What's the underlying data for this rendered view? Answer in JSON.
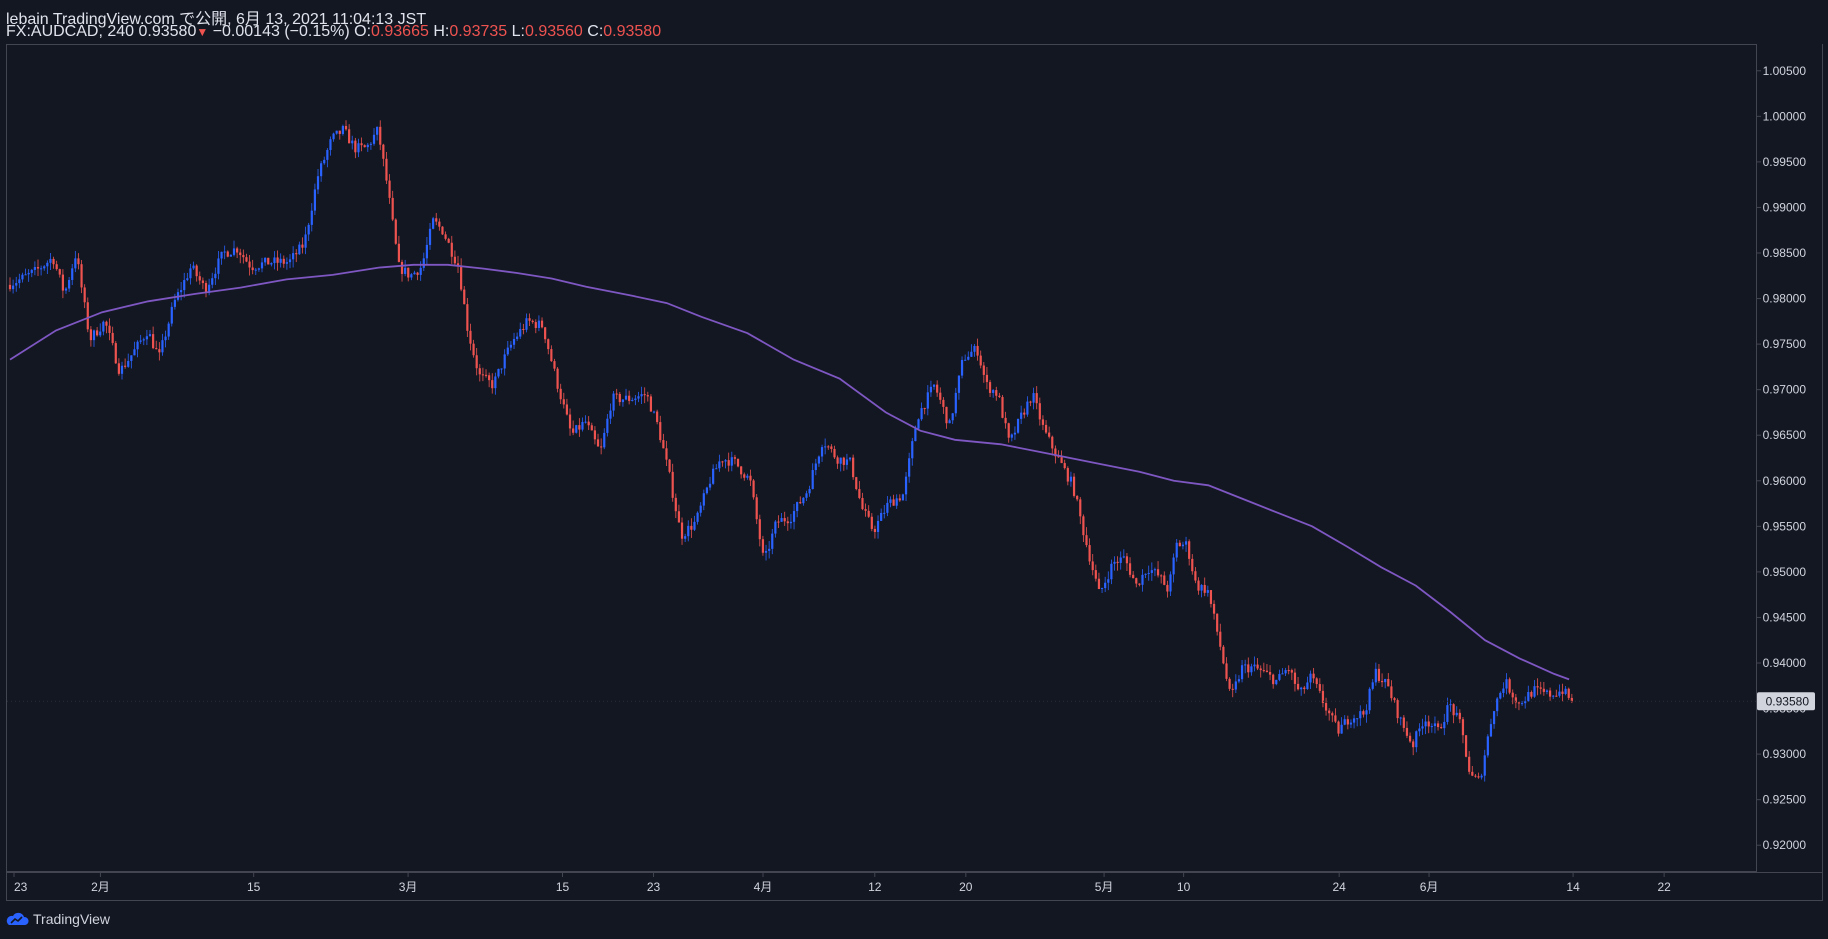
{
  "header": {
    "line1": "lebain TradingView.com で公開, 6月 13, 2021 11:04:13 JST",
    "symbol": "FX:AUDCAD, 240",
    "last": "0.93580",
    "change": "−0.00143 (−0.15%)",
    "o_label": "O:",
    "o_val": "0.93665",
    "h_label": "H:",
    "h_val": "0.93735",
    "l_label": "L:",
    "l_val": "0.93560",
    "c_label": "C:",
    "c_val": "0.93580"
  },
  "brand": {
    "name": "TradingView"
  },
  "colors": {
    "bg": "#131722",
    "up": "#2962ff",
    "down": "#ef5350",
    "ma": "#7e57c2",
    "grid": "#434651"
  },
  "chart_data": {
    "type": "line",
    "title": "FX:AUDCAD, 240",
    "series_type": "candlestick",
    "ylim": [
      0.9175,
      1.0075
    ],
    "price_ticks": [
      "1.00500",
      "1.00000",
      "0.99500",
      "0.99000",
      "0.98500",
      "0.98000",
      "0.97500",
      "0.97000",
      "0.96500",
      "0.96000",
      "0.95500",
      "0.95000",
      "0.94500",
      "0.94000",
      "0.93500",
      "0.93000",
      "0.92500",
      "0.92000"
    ],
    "price_tick_values": [
      1.005,
      1.0,
      0.995,
      0.99,
      0.985,
      0.98,
      0.975,
      0.97,
      0.965,
      0.96,
      0.955,
      0.95,
      0.945,
      0.94,
      0.935,
      0.93,
      0.925,
      0.92
    ],
    "last_price_label": "0.93580",
    "last_price": 0.9358,
    "x_range": [
      0,
      1510
    ],
    "time_ticks": [
      {
        "label": "23",
        "x": 0
      },
      {
        "label": "2月",
        "x": 75
      },
      {
        "label": "15",
        "x": 208
      },
      {
        "label": "3月",
        "x": 342
      },
      {
        "label": "15",
        "x": 476
      },
      {
        "label": "23",
        "x": 555
      },
      {
        "label": "4月",
        "x": 650
      },
      {
        "label": "12",
        "x": 747
      },
      {
        "label": "20",
        "x": 826
      },
      {
        "label": "5月",
        "x": 946
      },
      {
        "label": "10",
        "x": 1015
      },
      {
        "label": "24",
        "x": 1150
      },
      {
        "label": "6月",
        "x": 1228
      },
      {
        "label": "14",
        "x": 1353
      },
      {
        "label": "22",
        "x": 1432
      }
    ],
    "price_path": [
      [
        0,
        0.9815
      ],
      [
        10,
        0.982
      ],
      [
        25,
        0.983
      ],
      [
        40,
        0.9845
      ],
      [
        50,
        0.9805
      ],
      [
        60,
        0.985
      ],
      [
        72,
        0.9755
      ],
      [
        85,
        0.9775
      ],
      [
        98,
        0.972
      ],
      [
        112,
        0.9745
      ],
      [
        122,
        0.9765
      ],
      [
        132,
        0.9735
      ],
      [
        145,
        0.9795
      ],
      [
        160,
        0.9835
      ],
      [
        172,
        0.981
      ],
      [
        188,
        0.985
      ],
      [
        200,
        0.9855
      ],
      [
        212,
        0.9835
      ],
      [
        228,
        0.984
      ],
      [
        245,
        0.984
      ],
      [
        258,
        0.986
      ],
      [
        270,
        0.9935
      ],
      [
        282,
        0.9975
      ],
      [
        292,
        0.9985
      ],
      [
        302,
        0.9965
      ],
      [
        312,
        0.9965
      ],
      [
        322,
        0.9985
      ],
      [
        330,
        0.9925
      ],
      [
        340,
        0.9835
      ],
      [
        350,
        0.9825
      ],
      [
        360,
        0.9835
      ],
      [
        370,
        0.9885
      ],
      [
        378,
        0.9875
      ],
      [
        385,
        0.9855
      ],
      [
        392,
        0.9835
      ],
      [
        400,
        0.9765
      ],
      [
        410,
        0.9715
      ],
      [
        422,
        0.9705
      ],
      [
        432,
        0.9735
      ],
      [
        440,
        0.9755
      ],
      [
        452,
        0.9775
      ],
      [
        465,
        0.977
      ],
      [
        478,
        0.9705
      ],
      [
        490,
        0.965
      ],
      [
        502,
        0.9665
      ],
      [
        515,
        0.963
      ],
      [
        525,
        0.969
      ],
      [
        540,
        0.969
      ],
      [
        555,
        0.9695
      ],
      [
        565,
        0.966
      ],
      [
        575,
        0.9605
      ],
      [
        585,
        0.954
      ],
      [
        598,
        0.9555
      ],
      [
        610,
        0.96
      ],
      [
        620,
        0.9625
      ],
      [
        632,
        0.962
      ],
      [
        645,
        0.96
      ],
      [
        657,
        0.951
      ],
      [
        668,
        0.9555
      ],
      [
        680,
        0.956
      ],
      [
        695,
        0.959
      ],
      [
        708,
        0.9645
      ],
      [
        720,
        0.9625
      ],
      [
        732,
        0.962
      ],
      [
        742,
        0.957
      ],
      [
        752,
        0.9545
      ],
      [
        765,
        0.9575
      ],
      [
        778,
        0.9585
      ],
      [
        790,
        0.967
      ],
      [
        805,
        0.9705
      ],
      [
        818,
        0.966
      ],
      [
        830,
        0.9735
      ],
      [
        842,
        0.9745
      ],
      [
        850,
        0.9705
      ],
      [
        860,
        0.9695
      ],
      [
        870,
        0.964
      ],
      [
        880,
        0.967
      ],
      [
        890,
        0.9695
      ],
      [
        900,
        0.9655
      ],
      [
        912,
        0.9625
      ],
      [
        925,
        0.9595
      ],
      [
        935,
        0.954
      ],
      [
        948,
        0.9475
      ],
      [
        960,
        0.951
      ],
      [
        970,
        0.9515
      ],
      [
        980,
        0.9485
      ],
      [
        990,
        0.9505
      ],
      [
        1000,
        0.9495
      ],
      [
        1008,
        0.948
      ],
      [
        1015,
        0.953
      ],
      [
        1024,
        0.953
      ],
      [
        1032,
        0.9485
      ],
      [
        1042,
        0.948
      ],
      [
        1052,
        0.9425
      ],
      [
        1062,
        0.936
      ],
      [
        1072,
        0.9395
      ],
      [
        1082,
        0.9395
      ],
      [
        1090,
        0.939
      ],
      [
        1102,
        0.938
      ],
      [
        1112,
        0.9395
      ],
      [
        1122,
        0.9365
      ],
      [
        1132,
        0.9385
      ],
      [
        1145,
        0.935
      ],
      [
        1155,
        0.9325
      ],
      [
        1165,
        0.934
      ],
      [
        1178,
        0.9345
      ],
      [
        1188,
        0.939
      ],
      [
        1198,
        0.9375
      ],
      [
        1210,
        0.9335
      ],
      [
        1220,
        0.931
      ],
      [
        1230,
        0.934
      ],
      [
        1242,
        0.9325
      ],
      [
        1252,
        0.9355
      ],
      [
        1262,
        0.933
      ],
      [
        1270,
        0.9275
      ],
      [
        1278,
        0.927
      ],
      [
        1290,
        0.935
      ],
      [
        1300,
        0.938
      ],
      [
        1312,
        0.9355
      ],
      [
        1325,
        0.937
      ],
      [
        1338,
        0.9365
      ],
      [
        1350,
        0.937
      ],
      [
        1358,
        0.9358
      ]
    ],
    "ma_path": [
      [
        0,
        0.9733
      ],
      [
        40,
        0.9765
      ],
      [
        80,
        0.9785
      ],
      [
        120,
        0.9797
      ],
      [
        160,
        0.9805
      ],
      [
        200,
        0.9812
      ],
      [
        240,
        0.9821
      ],
      [
        280,
        0.9826
      ],
      [
        320,
        0.9834
      ],
      [
        350,
        0.9837
      ],
      [
        380,
        0.9837
      ],
      [
        410,
        0.9833
      ],
      [
        440,
        0.9828
      ],
      [
        470,
        0.9822
      ],
      [
        500,
        0.9813
      ],
      [
        540,
        0.9803
      ],
      [
        570,
        0.9795
      ],
      [
        600,
        0.978
      ],
      [
        640,
        0.9762
      ],
      [
        680,
        0.9733
      ],
      [
        720,
        0.9712
      ],
      [
        760,
        0.9675
      ],
      [
        790,
        0.9655
      ],
      [
        820,
        0.9645
      ],
      [
        860,
        0.964
      ],
      [
        900,
        0.963
      ],
      [
        940,
        0.962
      ],
      [
        980,
        0.961
      ],
      [
        1010,
        0.96
      ],
      [
        1040,
        0.9595
      ],
      [
        1070,
        0.958
      ],
      [
        1100,
        0.9565
      ],
      [
        1130,
        0.955
      ],
      [
        1160,
        0.9528
      ],
      [
        1190,
        0.9505
      ],
      [
        1220,
        0.9485
      ],
      [
        1250,
        0.9456
      ],
      [
        1280,
        0.9425
      ],
      [
        1310,
        0.9405
      ],
      [
        1340,
        0.9388
      ],
      [
        1353,
        0.9382
      ]
    ]
  }
}
